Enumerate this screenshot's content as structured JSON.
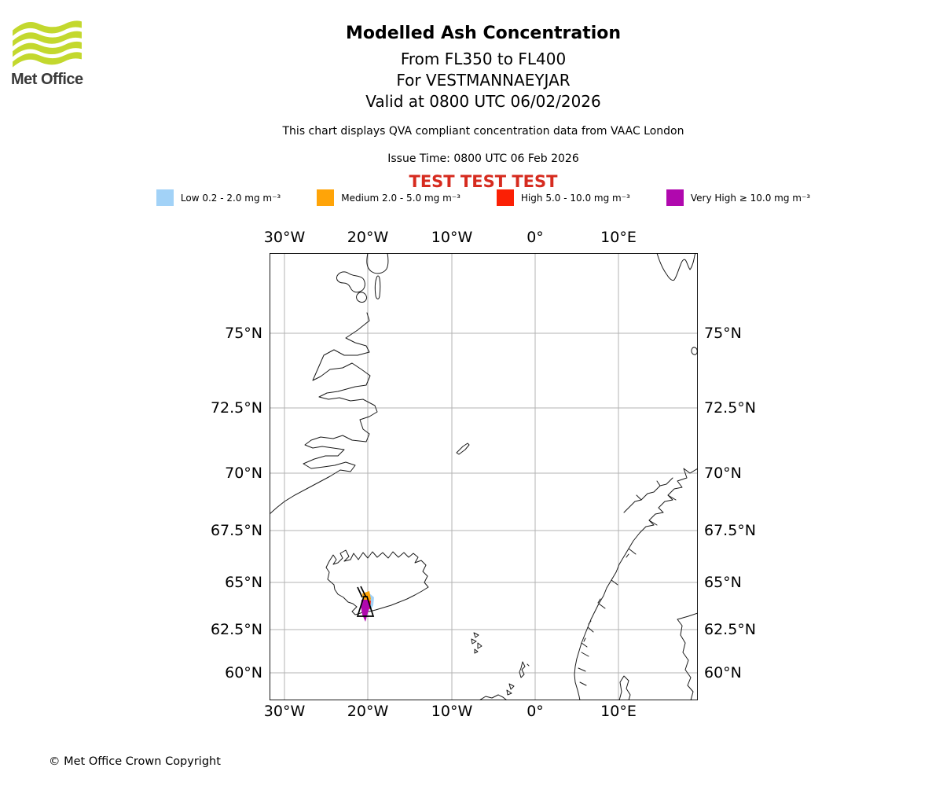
{
  "logo": {
    "brand": "Met Office",
    "wave_color": "#c3d82e"
  },
  "header": {
    "title": "Modelled Ash Concentration",
    "subtitle_levels": "From FL350 to FL400",
    "subtitle_location": "For VESTMANNAEYJAR",
    "subtitle_valid": "Valid at 0800 UTC 06/02/2026",
    "note": "This chart displays QVA compliant concentration data from VAAC London",
    "issue_time": "Issue Time: 0800 UTC 06 Feb 2026",
    "test_banner": "TEST TEST TEST",
    "test_color": "#d62b1f"
  },
  "legend": {
    "items": [
      {
        "name": "low",
        "label": "Low 0.2 - 2.0 mg m⁻³",
        "color": "#a2d2f7"
      },
      {
        "name": "medium",
        "label": "Medium 2.0 - 5.0 mg m⁻³",
        "color": "#ffa408"
      },
      {
        "name": "high",
        "label": "High 5.0 - 10.0 mg m⁻³",
        "color": "#fb2005"
      },
      {
        "name": "very_high",
        "label": "Very High ≥ 10.0 mg m⁻³",
        "color": "#b008ae"
      }
    ]
  },
  "map": {
    "lon_ticks": [
      "30°W",
      "20°W",
      "10°W",
      "0°",
      "10°E"
    ],
    "lat_ticks": [
      "75°N",
      "72.5°N",
      "70°N",
      "67.5°N",
      "65°N",
      "62.5°N",
      "60°N"
    ],
    "projection": "Mercator",
    "visible_regions": [
      "Greenland east coast",
      "Iceland",
      "Jan Mayen",
      "Svalbard tip",
      "Bear Island",
      "Norway",
      "Sweden",
      "Faroe Islands",
      "Shetland",
      "Orkney",
      "Scotland"
    ],
    "ash_plume": {
      "source": "Vestmannaeyjar volcano, south Iceland",
      "approx_lon": "20.5°W to 19.6°W",
      "approx_lat": "62.9°N to 64.1°N",
      "levels_present": [
        "low",
        "medium",
        "high",
        "very_high"
      ]
    },
    "grid_color": "#b3b3b3",
    "coast_color": "#1a1a1a"
  },
  "footer": {
    "copyright": "© Met Office Crown Copyright"
  }
}
